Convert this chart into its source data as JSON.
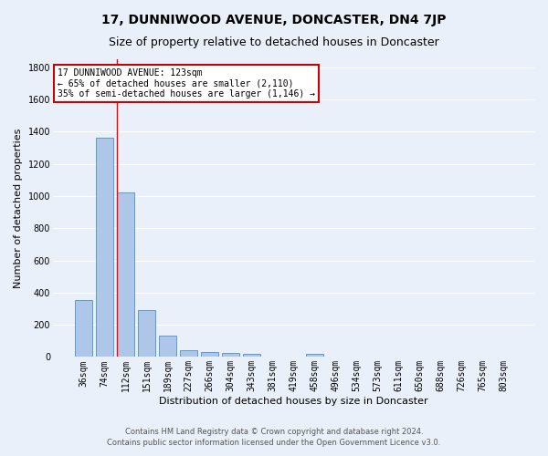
{
  "title": "17, DUNNIWOOD AVENUE, DONCASTER, DN4 7JP",
  "subtitle": "Size of property relative to detached houses in Doncaster",
  "xlabel": "Distribution of detached houses by size in Doncaster",
  "ylabel": "Number of detached properties",
  "categories": [
    "36sqm",
    "74sqm",
    "112sqm",
    "151sqm",
    "189sqm",
    "227sqm",
    "266sqm",
    "304sqm",
    "343sqm",
    "381sqm",
    "419sqm",
    "458sqm",
    "496sqm",
    "534sqm",
    "573sqm",
    "611sqm",
    "650sqm",
    "688sqm",
    "726sqm",
    "765sqm",
    "803sqm"
  ],
  "values": [
    355,
    1360,
    1020,
    290,
    130,
    40,
    30,
    25,
    18,
    0,
    0,
    18,
    0,
    0,
    0,
    0,
    0,
    0,
    0,
    0,
    0
  ],
  "bar_color": "#aec6e8",
  "bar_edge_color": "#5b9bd5",
  "red_line_index": 2,
  "annotation_title": "17 DUNNIWOOD AVENUE: 123sqm",
  "annotation_line1": "← 65% of detached houses are smaller (2,110)",
  "annotation_line2": "35% of semi-detached houses are larger (1,146) →",
  "annotation_box_color": "#ffffff",
  "annotation_box_edge_color": "#cc0000",
  "footnote1": "Contains HM Land Registry data © Crown copyright and database right 2024.",
  "footnote2": "Contains public sector information licensed under the Open Government Licence v3.0.",
  "ylim": [
    0,
    1850
  ],
  "yticks": [
    0,
    200,
    400,
    600,
    800,
    1000,
    1200,
    1400,
    1600,
    1800
  ],
  "bg_color": "#eaf0fa",
  "grid_color": "#ffffff",
  "title_fontsize": 10,
  "subtitle_fontsize": 9,
  "axis_label_fontsize": 8,
  "tick_fontsize": 7,
  "annotation_fontsize": 7,
  "ylabel_fontsize": 8
}
